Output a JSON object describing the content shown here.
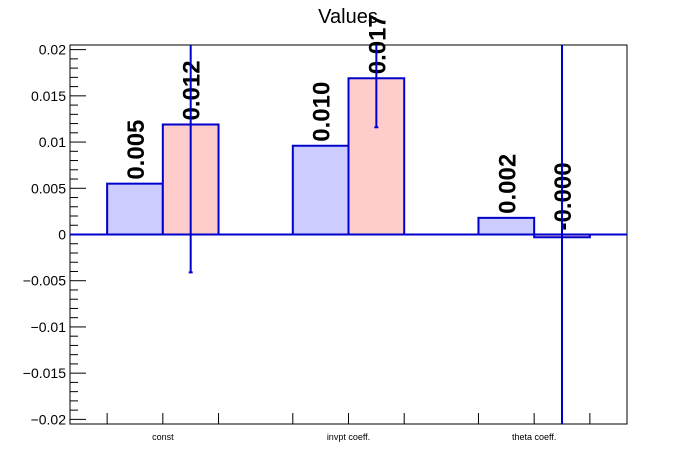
{
  "chart_data": {
    "type": "bar",
    "title": "Values",
    "categories": [
      "const",
      "invpt coeff.",
      "theta coeff."
    ],
    "series": [
      {
        "fill": "#ccccff",
        "values": [
          0.0055,
          0.0096,
          0.0018
        ],
        "value_labels": [
          "0.005",
          "0.010",
          "0.002"
        ]
      },
      {
        "fill": "#ffcccc",
        "values": [
          0.0119,
          0.0169,
          -0.0003
        ],
        "value_labels": [
          "0.012",
          "0.017",
          "-0.000"
        ],
        "errors": [
          0.016,
          0.0053,
          0.027
        ]
      }
    ],
    "ylim": [
      -0.0205,
      0.0205
    ],
    "yticks": [
      -0.02,
      -0.015,
      -0.01,
      -0.005,
      0,
      0.005,
      0.01,
      0.015,
      0.02
    ],
    "ytick_labels": [
      "−0.02",
      "−0.015",
      "−0.01",
      "−0.005",
      "0",
      "0.005",
      "0.01",
      "0.015",
      "0.02"
    ],
    "grid": false,
    "legend": "none",
    "outline_color": "#0000cc"
  }
}
